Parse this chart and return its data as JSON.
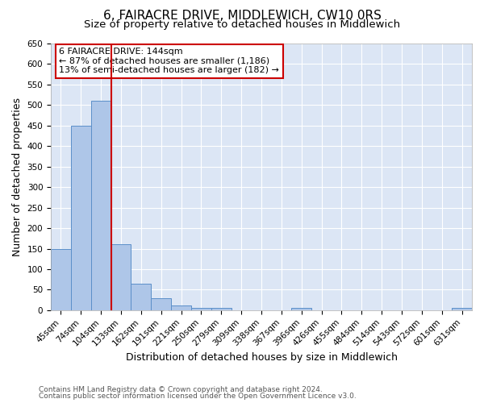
{
  "title": "6, FAIRACRE DRIVE, MIDDLEWICH, CW10 0RS",
  "subtitle": "Size of property relative to detached houses in Middlewich",
  "xlabel": "Distribution of detached houses by size in Middlewich",
  "ylabel": "Number of detached properties",
  "footnote1": "Contains HM Land Registry data © Crown copyright and database right 2024.",
  "footnote2": "Contains public sector information licensed under the Open Government Licence v3.0.",
  "bin_labels": [
    "45sqm",
    "74sqm",
    "104sqm",
    "133sqm",
    "162sqm",
    "191sqm",
    "221sqm",
    "250sqm",
    "279sqm",
    "309sqm",
    "338sqm",
    "367sqm",
    "396sqm",
    "426sqm",
    "455sqm",
    "484sqm",
    "514sqm",
    "543sqm",
    "572sqm",
    "601sqm",
    "631sqm"
  ],
  "bar_heights": [
    150,
    450,
    510,
    160,
    65,
    30,
    12,
    5,
    5,
    0,
    0,
    0,
    5,
    0,
    0,
    0,
    0,
    0,
    0,
    0,
    5
  ],
  "bar_color": "#aec6e8",
  "bar_edge_color": "#5b8fc9",
  "ylim": [
    0,
    650
  ],
  "yticks": [
    0,
    50,
    100,
    150,
    200,
    250,
    300,
    350,
    400,
    450,
    500,
    550,
    600,
    650
  ],
  "vline_color": "#cc0000",
  "annotation_title": "6 FAIRACRE DRIVE: 144sqm",
  "annotation_line1": "← 87% of detached houses are smaller (1,186)",
  "annotation_line2": "13% of semi-detached houses are larger (182) →",
  "annotation_box_color": "#ffffff",
  "annotation_box_edge": "#cc0000",
  "plot_bg_color": "#dce6f5",
  "fig_bg_color": "#ffffff",
  "grid_color": "#ffffff",
  "title_fontsize": 11,
  "subtitle_fontsize": 9.5,
  "axis_label_fontsize": 9,
  "tick_fontsize": 7.5,
  "annotation_fontsize": 8,
  "footnote_fontsize": 6.5
}
